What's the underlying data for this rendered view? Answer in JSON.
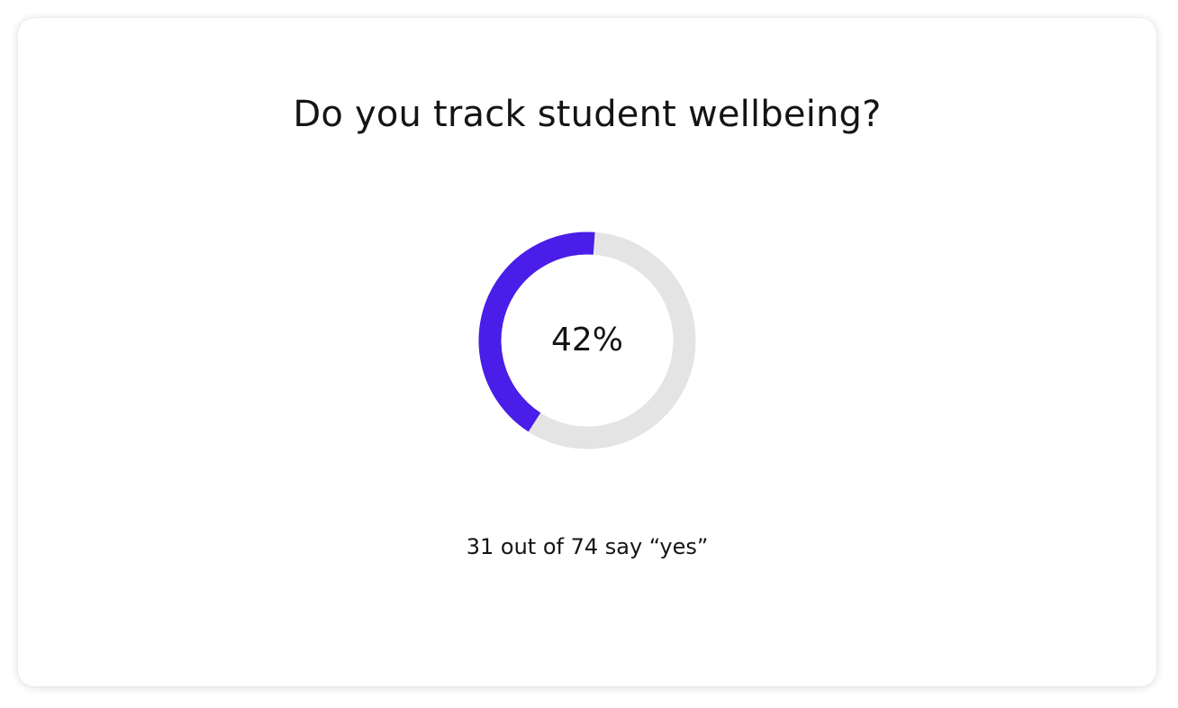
{
  "card": {
    "title": "Do you track student wellbeing?",
    "caption": "31 out of 74 say “yes”"
  },
  "chart_data": {
    "type": "pie",
    "style": "donut",
    "center_label": "42%",
    "percent": 42,
    "count": 31,
    "total": 74,
    "colors": {
      "filled": "#4a1de8",
      "track": "#e4e4e4"
    }
  }
}
